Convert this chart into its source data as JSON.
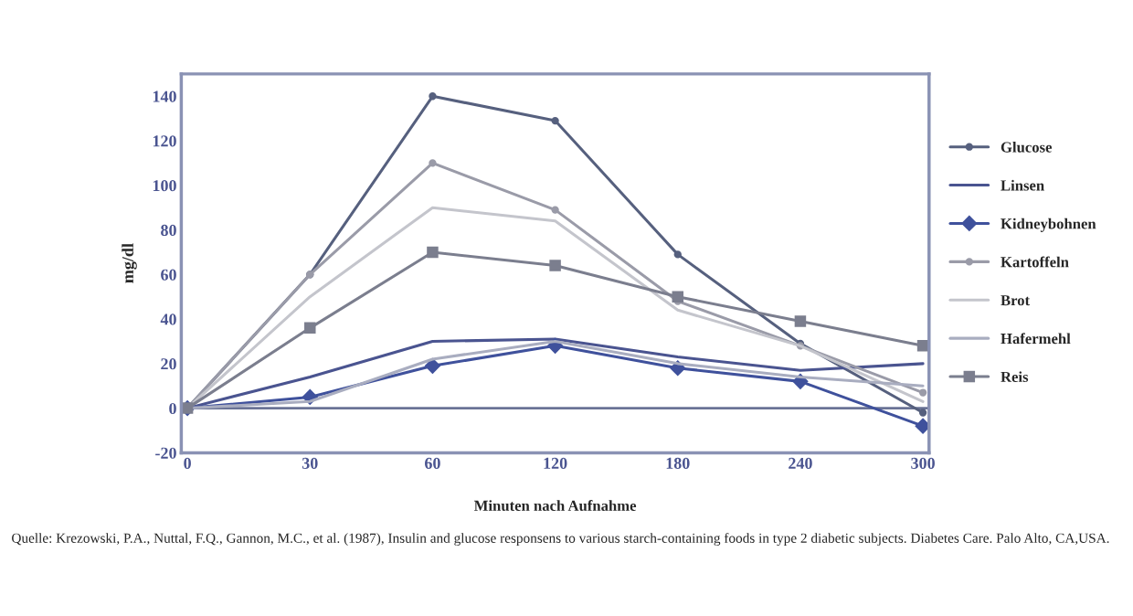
{
  "chart_data": {
    "type": "line",
    "xlabel": "Minuten nach Aufnahme",
    "ylabel": "mg/dl",
    "categories": [
      "0",
      "30",
      "60",
      "120",
      "180",
      "240",
      "300"
    ],
    "ylim": [
      -20,
      150
    ],
    "yticks": [
      -20,
      0,
      20,
      40,
      60,
      80,
      100,
      120,
      140
    ],
    "series": [
      {
        "name": "Glucose",
        "color": "#56607e",
        "marker": "circle",
        "values": [
          0,
          60,
          140,
          129,
          69,
          29,
          -2
        ]
      },
      {
        "name": "Linsen",
        "color": "#4a5490",
        "values": [
          0,
          14,
          30,
          31,
          23,
          17,
          20
        ]
      },
      {
        "name": "Kidneybohnen",
        "color": "#3f519c",
        "marker": "diamond",
        "values": [
          0,
          5,
          19,
          28,
          18,
          12,
          -8
        ]
      },
      {
        "name": "Kartoffeln",
        "color": "#9a9ba8",
        "marker": "circle",
        "values": [
          0,
          60,
          110,
          89,
          48,
          28,
          7
        ]
      },
      {
        "name": "Brot",
        "color": "#c4c5cc",
        "values": [
          0,
          50,
          90,
          84,
          44,
          28,
          3
        ]
      },
      {
        "name": "Hafermehl",
        "color": "#a9adc0",
        "values": [
          0,
          3,
          22,
          30,
          20,
          14,
          10
        ]
      },
      {
        "name": "Reis",
        "color": "#7b7e8e",
        "marker": "square",
        "values": [
          0,
          36,
          70,
          64,
          50,
          39,
          28
        ]
      }
    ],
    "ref_lines": [
      {
        "axis": "y",
        "value": 0,
        "color": "#6a7396"
      }
    ],
    "grid": false,
    "legend": "right",
    "annotations": [
      "Quelle: Krezowski, P.A., Nuttal, F.Q., Gannon, M.C., et al. (1987), Insulin and glucose responsens to various starch-containing foods in type 2 diabetic subjects. Diabetes Care. Palo Alto, CA,USA."
    ]
  }
}
